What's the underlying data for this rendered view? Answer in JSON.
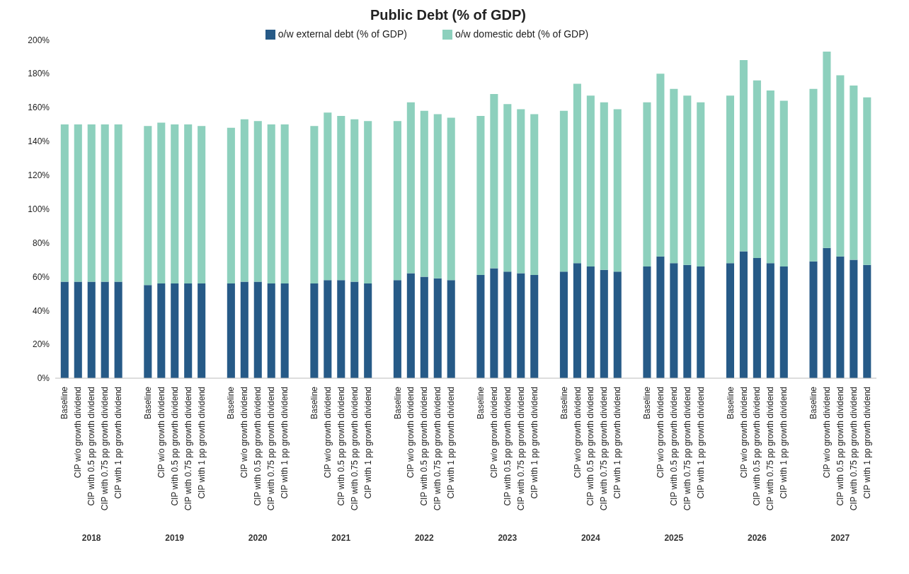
{
  "chart_data": {
    "type": "bar",
    "title": "Public Debt (% of GDP)",
    "stacked": true,
    "legend": "top",
    "grid": false,
    "categories": [
      "Baseline",
      "CIP w/o growth dividend",
      "CIP with 0.5 pp growth dividend",
      "CIP with 0.75 pp growth dividend",
      "CIP with 1 pp growth dividend",
      "Baseline",
      "CIP w/o growth dividend",
      "CIP with 0.5 pp growth dividend",
      "CIP with 0.75 pp growth dividend",
      "CIP with 1 pp growth dividend",
      "Baseline",
      "CIP w/o growth dividend",
      "CIP with 0.5 pp growth dividend",
      "CIP with 0.75 pp growth dividend",
      "CIP with 1 pp growth dividend",
      "Baseline",
      "CIP w/o growth dividend",
      "CIP with 0.5 pp growth dividend",
      "CIP with 0.75 pp growth dividend",
      "CIP with 1 pp growth dividend",
      "Baseline",
      "CIP w/o growth dividend",
      "CIP with 0.5 pp growth dividend",
      "CIP with 0.75 pp growth dividend",
      "CIP with 1 pp growth dividend",
      "Baseline",
      "CIP w/o growth dividend",
      "CIP with 0.5 pp growth dividend",
      "CIP with 0.75 pp growth dividend",
      "CIP with 1 pp growth dividend",
      "Baseline",
      "CIP w/o growth dividend",
      "CIP with 0.5 pp growth dividend",
      "CIP with 0.75 pp growth dividend",
      "CIP with 1 pp growth dividend",
      "Baseline",
      "CIP w/o growth dividend",
      "CIP with 0.5 pp growth dividend",
      "CIP with 0.75 pp growth dividend",
      "CIP with 1 pp growth dividend",
      "Baseline",
      "CIP w/o growth dividend",
      "CIP with 0.5 pp growth dividend",
      "CIP with 0.75 pp growth dividend",
      "CIP with 1 pp growth dividend",
      "Baseline",
      "CIP w/o growth dividend",
      "CIP with 0.5 pp growth dividend",
      "CIP with 0.75 pp growth dividend",
      "CIP with 1 pp growth dividend"
    ],
    "annotations": [
      "2018",
      "2019",
      "2020",
      "2021",
      "2022",
      "2023",
      "2024",
      "2025",
      "2026",
      "2027"
    ],
    "series": [
      {
        "name": "o/w external debt (% of GDP)",
        "color": "#265a87",
        "values": [
          57,
          57,
          57,
          57,
          57,
          55,
          56,
          56,
          56,
          56,
          56,
          57,
          57,
          56,
          56,
          56,
          58,
          58,
          57,
          56,
          58,
          62,
          60,
          59,
          58,
          61,
          65,
          63,
          62,
          61,
          63,
          68,
          66,
          64,
          63,
          66,
          72,
          68,
          67,
          66,
          68,
          75,
          71,
          68,
          66,
          69,
          77,
          72,
          70,
          67
        ]
      },
      {
        "name": "o/w domestic debt (% of GDP)",
        "color": "#8dd0bd",
        "values": [
          93,
          93,
          93,
          93,
          93,
          94,
          95,
          94,
          94,
          93,
          92,
          96,
          95,
          94,
          94,
          93,
          99,
          97,
          96,
          96,
          94,
          101,
          98,
          97,
          96,
          94,
          103,
          99,
          97,
          95,
          95,
          106,
          101,
          99,
          96,
          97,
          108,
          103,
          100,
          97,
          99,
          113,
          105,
          102,
          98,
          102,
          116,
          107,
          103,
          99
        ]
      }
    ],
    "ylim": [
      0,
      200
    ],
    "yticks": [
      {
        "value": 0,
        "label": "0%"
      },
      {
        "value": 20,
        "label": "20%"
      },
      {
        "value": 40,
        "label": "40%"
      },
      {
        "value": 60,
        "label": "60%"
      },
      {
        "value": 80,
        "label": "80%"
      },
      {
        "value": 100,
        "label": "100%"
      },
      {
        "value": 120,
        "label": "120%"
      },
      {
        "value": 140,
        "label": "140%"
      },
      {
        "value": 160,
        "label": "160%"
      },
      {
        "value": 180,
        "label": "180%"
      },
      {
        "value": 200,
        "label": "200%"
      }
    ]
  }
}
